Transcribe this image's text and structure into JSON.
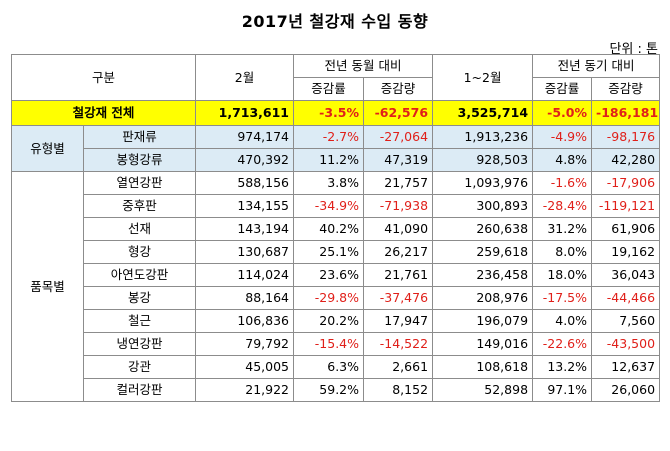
{
  "title": "2017년 철강재 수입 동향",
  "unit": "단위 : 톤",
  "header": {
    "category": "구분",
    "feb": "2월",
    "yoy_month": "전년 동월 대비",
    "jan_feb": "1~2월",
    "yoy_period": "전년 동기 대비",
    "rate": "증감률",
    "amount": "증감량"
  },
  "colors": {
    "total_bg": "#ffff00",
    "group_bg": "#dcebf5",
    "negative_text": "#e0201a"
  },
  "total": {
    "label": "철강재 전체",
    "feb": "1,713,611",
    "yoy_rate": "-3.5%",
    "yoy_amount": "-62,576",
    "cum": "3,525,714",
    "cum_rate": "-5.0%",
    "cum_amount": "-186,181"
  },
  "type_group": {
    "label": "유형별",
    "rows": [
      {
        "name": "판재류",
        "feb": "974,174",
        "yoy_rate": "-2.7%",
        "yoy_amount": "-27,064",
        "cum": "1,913,236",
        "cum_rate": "-4.9%",
        "cum_amount": "-98,176"
      },
      {
        "name": "봉형강류",
        "feb": "470,392",
        "yoy_rate": "11.2%",
        "yoy_amount": "47,319",
        "cum": "928,503",
        "cum_rate": "4.8%",
        "cum_amount": "42,280"
      }
    ]
  },
  "item_group": {
    "label": "품목별",
    "rows": [
      {
        "name": "열연강판",
        "feb": "588,156",
        "yoy_rate": "3.8%",
        "yoy_amount": "21,757",
        "cum": "1,093,976",
        "cum_rate": "-1.6%",
        "cum_amount": "-17,906"
      },
      {
        "name": "중후판",
        "feb": "134,155",
        "yoy_rate": "-34.9%",
        "yoy_amount": "-71,938",
        "cum": "300,893",
        "cum_rate": "-28.4%",
        "cum_amount": "-119,121"
      },
      {
        "name": "선재",
        "feb": "143,194",
        "yoy_rate": "40.2%",
        "yoy_amount": "41,090",
        "cum": "260,638",
        "cum_rate": "31.2%",
        "cum_amount": "61,906"
      },
      {
        "name": "형강",
        "feb": "130,687",
        "yoy_rate": "25.1%",
        "yoy_amount": "26,217",
        "cum": "259,618",
        "cum_rate": "8.0%",
        "cum_amount": "19,162"
      },
      {
        "name": "아연도강판",
        "feb": "114,024",
        "yoy_rate": "23.6%",
        "yoy_amount": "21,761",
        "cum": "236,458",
        "cum_rate": "18.0%",
        "cum_amount": "36,043"
      },
      {
        "name": "봉강",
        "feb": "88,164",
        "yoy_rate": "-29.8%",
        "yoy_amount": "-37,476",
        "cum": "208,976",
        "cum_rate": "-17.5%",
        "cum_amount": "-44,466"
      },
      {
        "name": "철근",
        "feb": "106,836",
        "yoy_rate": "20.2%",
        "yoy_amount": "17,947",
        "cum": "196,079",
        "cum_rate": "4.0%",
        "cum_amount": "7,560"
      },
      {
        "name": "냉연강판",
        "feb": "79,792",
        "yoy_rate": "-15.4%",
        "yoy_amount": "-14,522",
        "cum": "149,016",
        "cum_rate": "-22.6%",
        "cum_amount": "-43,500"
      },
      {
        "name": "강관",
        "feb": "45,005",
        "yoy_rate": "6.3%",
        "yoy_amount": "2,661",
        "cum": "108,618",
        "cum_rate": "13.2%",
        "cum_amount": "12,637"
      },
      {
        "name": "컬러강판",
        "feb": "21,922",
        "yoy_rate": "59.2%",
        "yoy_amount": "8,152",
        "cum": "52,898",
        "cum_rate": "97.1%",
        "cum_amount": "26,060"
      }
    ]
  }
}
